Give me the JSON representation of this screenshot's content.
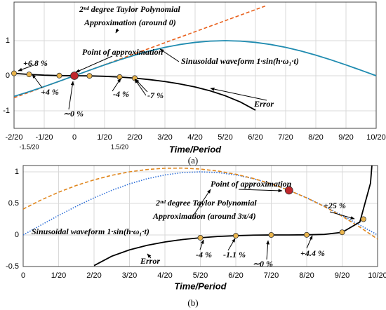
{
  "chart_data": [
    {
      "type": "line",
      "x_label": "Time/Period",
      "caption": "(a)",
      "xlim": [
        -0.1,
        0.5
      ],
      "ylim": [
        -1.5,
        2.1
      ],
      "grid": true,
      "xticks": [
        {
          "value": -0.1,
          "label": "-2/20"
        },
        {
          "value": -0.05,
          "label": "-1/20"
        },
        0,
        {
          "value": 0.05,
          "label": "1/20"
        },
        {
          "value": 0.1,
          "label": "2/20"
        },
        {
          "value": 0.15,
          "label": "3/20"
        },
        {
          "value": 0.2,
          "label": "4/20"
        },
        {
          "value": 0.25,
          "label": "5/20"
        },
        {
          "value": 0.3,
          "label": "6/20"
        },
        {
          "value": 0.35,
          "label": "7/20"
        },
        {
          "value": 0.4,
          "label": "8/20"
        },
        {
          "value": 0.45,
          "label": "9/20"
        },
        {
          "value": 0.5,
          "label": "10/20"
        }
      ],
      "minor_xticks": [
        {
          "value": -0.075,
          "label": "-1.5/20"
        },
        {
          "value": 0.075,
          "label": "1.5/20"
        }
      ],
      "yticks": [
        -1,
        0,
        1
      ],
      "series": [
        {
          "color": "#e8601c",
          "dash": "dashed",
          "x": [
            -0.1,
            0.3183
          ],
          "values": [
            -0.628,
            2
          ]
        },
        {
          "color": "#1f8bb0",
          "dash": "solid",
          "x": [
            -0.1,
            -0.075,
            -0.05,
            -0.025,
            0,
            0.025,
            0.05,
            0.075,
            0.1,
            0.125,
            0.15,
            0.175,
            0.2,
            0.225,
            0.25,
            0.275,
            0.3,
            0.325,
            0.35,
            0.375,
            0.4,
            0.425,
            0.45,
            0.475,
            0.5
          ],
          "values": [
            -0.588,
            -0.454,
            -0.309,
            -0.156,
            0,
            0.156,
            0.309,
            0.454,
            0.588,
            0.707,
            0.809,
            0.891,
            0.951,
            0.988,
            1,
            0.988,
            0.951,
            0.891,
            0.809,
            0.707,
            0.588,
            0.454,
            0.309,
            0.156,
            0
          ]
        },
        {
          "color": "#000000",
          "dash": "solid",
          "x": [
            -0.1,
            -0.075,
            -0.05,
            -0.025,
            0,
            0.025,
            0.05,
            0.075,
            0.1,
            0.125,
            0.15,
            0.175,
            0.2,
            0.225,
            0.25,
            0.275,
            0.3
          ],
          "values": [
            0.068,
            0.038,
            0.016,
            0.004,
            0,
            -0.004,
            -0.016,
            -0.038,
            -0.068,
            -0.111,
            -0.165,
            -0.234,
            -0.321,
            -0.431,
            -0.571,
            -0.749,
            -0.982
          ]
        }
      ],
      "points": {
        "x": [
          -0.1,
          -0.075,
          -0.025,
          0.025,
          0.075,
          0.1
        ],
        "values": [
          0.068,
          0.038,
          0.004,
          -0.004,
          -0.038,
          -0.068
        ]
      },
      "highlight_point": {
        "x": 0,
        "value": 0
      },
      "annotations": [
        "2ⁿᵈ degree Taylor Polynomial",
        "Approximation (around 0)",
        "Point of approximation",
        "Sinusoidal waveform 1·sin(h·ω₁·t)",
        "Error",
        "+6.8 %",
        "+4 %",
        "∼0 %",
        "-4 %",
        "-7 %"
      ]
    },
    {
      "type": "line",
      "x_label": "Time/Period",
      "caption": "(b)",
      "xlim": [
        0,
        0.5
      ],
      "ylim": [
        -0.5,
        1.1
      ],
      "grid": true,
      "xticks": [
        0,
        {
          "value": 0.05,
          "label": "1/20"
        },
        {
          "value": 0.1,
          "label": "2/20"
        },
        {
          "value": 0.15,
          "label": "3/20"
        },
        {
          "value": 0.2,
          "label": "4/20"
        },
        {
          "value": 0.25,
          "label": "5/20"
        },
        {
          "value": 0.3,
          "label": "6/20"
        },
        {
          "value": 0.35,
          "label": "7/20"
        },
        {
          "value": 0.4,
          "label": "8/20"
        },
        {
          "value": 0.45,
          "label": "9/20"
        },
        {
          "value": 0.5,
          "label": "10/20"
        }
      ],
      "yticks": [
        -0.5,
        0,
        0.5,
        1
      ],
      "series": [
        {
          "color": "#2e6fd8",
          "dash": "dotted",
          "x": [
            0,
            0.025,
            0.05,
            0.075,
            0.1,
            0.125,
            0.15,
            0.175,
            0.2,
            0.225,
            0.25,
            0.275,
            0.3,
            0.325,
            0.35,
            0.375,
            0.4,
            0.425,
            0.45,
            0.475,
            0.5
          ],
          "values": [
            0,
            0.156,
            0.309,
            0.454,
            0.588,
            0.707,
            0.809,
            0.891,
            0.951,
            0.988,
            1,
            0.988,
            0.951,
            0.891,
            0.809,
            0.707,
            0.588,
            0.454,
            0.309,
            0.156,
            0
          ]
        },
        {
          "color": "#e0861c",
          "dash": "dashed",
          "x": [
            0,
            0.025,
            0.05,
            0.075,
            0.1,
            0.125,
            0.15,
            0.175,
            0.2,
            0.225,
            0.25,
            0.275,
            0.3,
            0.325,
            0.35,
            0.375,
            0.4,
            0.425,
            0.45,
            0.475,
            0.5
          ],
          "values": [
            0.41,
            0.552,
            0.677,
            0.784,
            0.873,
            0.945,
            1,
            1.037,
            1.057,
            1.059,
            1.044,
            1.012,
            0.962,
            0.894,
            0.809,
            0.707,
            0.587,
            0.45,
            0.296,
            0.124,
            -0.066
          ]
        },
        {
          "color": "#000000",
          "dash": "solid",
          "x": [
            0.1,
            0.125,
            0.15,
            0.175,
            0.2,
            0.225,
            0.25,
            0.275,
            0.3,
            0.325,
            0.35,
            0.375,
            0.4,
            0.425,
            0.45,
            0.475,
            0.49,
            0.4925
          ],
          "values": [
            -0.485,
            -0.337,
            -0.236,
            -0.164,
            -0.111,
            -0.072,
            -0.044,
            -0.024,
            -0.012,
            -0.003,
            0,
            0,
            0.002,
            0.009,
            0.042,
            0.205,
            0.82,
            1.17
          ]
        }
      ],
      "points": {
        "x": [
          0.25,
          0.3,
          0.35,
          0.4,
          0.45,
          0.48
        ],
        "values": [
          -0.044,
          -0.012,
          0,
          0.002,
          0.042,
          0.25
        ]
      },
      "highlight_point": {
        "x": 0.375,
        "value": 0.707
      },
      "annotations": [
        "Point of approximation",
        "2ⁿᵈ degree Taylor Polynomial",
        "Approximation (around 3π/4)",
        "Sinusoidal waveform 1·sin(h·ω₁·t)",
        "Error",
        "-4 %",
        "-1.1 %",
        "∼0 %",
        "+4.4 %",
        "+25 %"
      ]
    }
  ]
}
